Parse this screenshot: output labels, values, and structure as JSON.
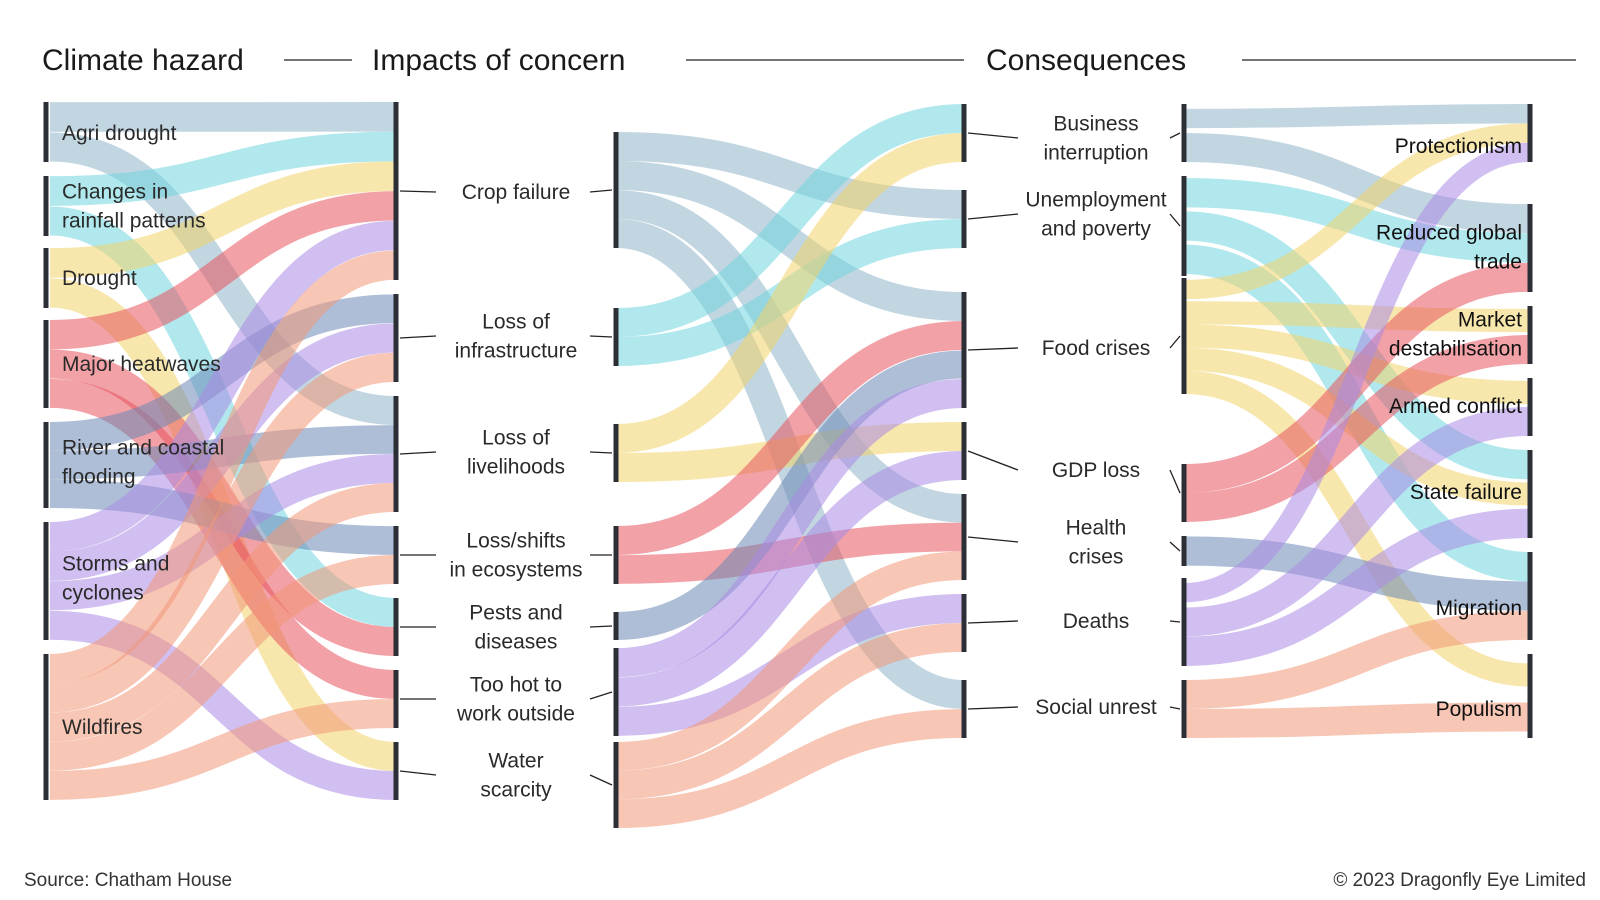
{
  "headers": {
    "hazard": "Climate hazard",
    "impacts": "Impacts of concern",
    "consequences": "Consequences"
  },
  "footer": {
    "source": "Source: Chatham House",
    "copyright": "© 2023 Dragonfly Eye Limited"
  },
  "colors": {
    "blue_grey": "#8fb4c8",
    "cyan": "#6fd6df",
    "yellow": "#f2d46a",
    "red": "#e7535f",
    "slate": "#6c88b6",
    "lavender": "#a98ae4",
    "salmon": "#f39879",
    "bar": "#2d2f36"
  },
  "hazards": [
    {
      "id": "agri",
      "lines": [
        "Agri drought"
      ],
      "color": "blue_grey"
    },
    {
      "id": "rain",
      "lines": [
        "Changes in",
        "rainfall patterns"
      ],
      "color": "cyan"
    },
    {
      "id": "drought",
      "lines": [
        "Drought"
      ],
      "color": "yellow"
    },
    {
      "id": "heat",
      "lines": [
        "Major heatwaves"
      ],
      "color": "red"
    },
    {
      "id": "flood",
      "lines": [
        "River and coastal",
        "flooding"
      ],
      "color": "slate"
    },
    {
      "id": "storm",
      "lines": [
        "Storms and",
        "cyclones"
      ],
      "color": "lavender"
    },
    {
      "id": "fire",
      "lines": [
        "Wildfires"
      ],
      "color": "salmon"
    }
  ],
  "impacts": [
    {
      "id": "crop",
      "lines": [
        "Crop failure"
      ]
    },
    {
      "id": "infra",
      "lines": [
        "Loss of",
        "infrastructure"
      ]
    },
    {
      "id": "livelihood",
      "lines": [
        "Loss of",
        "livelihoods"
      ]
    },
    {
      "id": "eco",
      "lines": [
        "Loss/shifts",
        "in ecosystems"
      ]
    },
    {
      "id": "pests",
      "lines": [
        "Pests and",
        "diseases"
      ]
    },
    {
      "id": "hot",
      "lines": [
        "Too hot to",
        "work outside"
      ]
    },
    {
      "id": "water",
      "lines": [
        "Water",
        "scarcity"
      ]
    }
  ],
  "consequences": [
    {
      "id": "business",
      "lines": [
        "Business",
        "interruption"
      ]
    },
    {
      "id": "unemp",
      "lines": [
        "Unemployment",
        "and poverty"
      ]
    },
    {
      "id": "food",
      "lines": [
        "Food crises"
      ]
    },
    {
      "id": "gdp",
      "lines": [
        "GDP loss"
      ]
    },
    {
      "id": "health",
      "lines": [
        "Health",
        "crises"
      ]
    },
    {
      "id": "deaths",
      "lines": [
        "Deaths"
      ]
    },
    {
      "id": "unrest",
      "lines": [
        "Social unrest"
      ]
    }
  ],
  "outcomes": [
    {
      "id": "protect",
      "lines": [
        "Protectionism"
      ]
    },
    {
      "id": "trade",
      "lines": [
        "Reduced global",
        "trade"
      ]
    },
    {
      "id": "market",
      "lines": [
        "Market",
        "destabilisation"
      ]
    },
    {
      "id": "armed",
      "lines": [
        "Armed conflict"
      ]
    },
    {
      "id": "state",
      "lines": [
        "State failure"
      ]
    },
    {
      "id": "migration",
      "lines": [
        "Migration"
      ]
    },
    {
      "id": "populism",
      "lines": [
        "Populism"
      ]
    }
  ],
  "links_hazard_impact": [
    {
      "from": "agri",
      "to": "crop"
    },
    {
      "from": "agri",
      "to": "livelihood"
    },
    {
      "from": "rain",
      "to": "crop"
    },
    {
      "from": "rain",
      "to": "pests"
    },
    {
      "from": "drought",
      "to": "crop"
    },
    {
      "from": "drought",
      "to": "water"
    },
    {
      "from": "heat",
      "to": "crop"
    },
    {
      "from": "heat",
      "to": "pests"
    },
    {
      "from": "heat",
      "to": "hot"
    },
    {
      "from": "flood",
      "to": "infra"
    },
    {
      "from": "flood",
      "to": "livelihood"
    },
    {
      "from": "flood",
      "to": "eco"
    },
    {
      "from": "storm",
      "to": "crop"
    },
    {
      "from": "storm",
      "to": "infra"
    },
    {
      "from": "storm",
      "to": "livelihood"
    },
    {
      "from": "storm",
      "to": "water"
    },
    {
      "from": "fire",
      "to": "crop"
    },
    {
      "from": "fire",
      "to": "infra"
    },
    {
      "from": "fire",
      "to": "livelihood"
    },
    {
      "from": "fire",
      "to": "eco"
    },
    {
      "from": "fire",
      "to": "hot"
    }
  ],
  "links_impact_consequence": [
    {
      "from": "crop",
      "to": "unemp",
      "color": "blue_grey"
    },
    {
      "from": "crop",
      "to": "food",
      "color": "blue_grey"
    },
    {
      "from": "crop",
      "to": "health",
      "color": "blue_grey"
    },
    {
      "from": "crop",
      "to": "unrest",
      "color": "blue_grey"
    },
    {
      "from": "infra",
      "to": "business",
      "color": "cyan"
    },
    {
      "from": "infra",
      "to": "unemp",
      "color": "cyan"
    },
    {
      "from": "livelihood",
      "to": "business",
      "color": "yellow"
    },
    {
      "from": "livelihood",
      "to": "gdp",
      "color": "yellow"
    },
    {
      "from": "eco",
      "to": "food",
      "color": "red"
    },
    {
      "from": "eco",
      "to": "health",
      "color": "red"
    },
    {
      "from": "pests",
      "to": "food",
      "color": "slate"
    },
    {
      "from": "hot",
      "to": "food",
      "color": "lavender"
    },
    {
      "from": "hot",
      "to": "gdp",
      "color": "lavender"
    },
    {
      "from": "hot",
      "to": "deaths",
      "color": "lavender"
    },
    {
      "from": "water",
      "to": "health",
      "color": "salmon"
    },
    {
      "from": "water",
      "to": "deaths",
      "color": "salmon"
    },
    {
      "from": "water",
      "to": "unrest",
      "color": "salmon"
    }
  ],
  "links_consequence_outcome": [
    {
      "from": "business",
      "to": "protect",
      "color": "blue_grey"
    },
    {
      "from": "business",
      "to": "trade",
      "color": "blue_grey"
    },
    {
      "from": "unemp",
      "to": "trade",
      "color": "cyan"
    },
    {
      "from": "unemp",
      "to": "state",
      "color": "cyan"
    },
    {
      "from": "unemp",
      "to": "migration",
      "color": "cyan"
    },
    {
      "from": "food",
      "to": "protect",
      "color": "yellow"
    },
    {
      "from": "food",
      "to": "market",
      "color": "yellow"
    },
    {
      "from": "food",
      "to": "armed",
      "color": "yellow"
    },
    {
      "from": "food",
      "to": "state",
      "color": "yellow"
    },
    {
      "from": "food",
      "to": "populism",
      "color": "yellow"
    },
    {
      "from": "gdp",
      "to": "trade",
      "color": "red"
    },
    {
      "from": "gdp",
      "to": "market",
      "color": "red"
    },
    {
      "from": "health",
      "to": "migration",
      "color": "slate"
    },
    {
      "from": "deaths",
      "to": "protect",
      "color": "lavender"
    },
    {
      "from": "deaths",
      "to": "armed",
      "color": "lavender"
    },
    {
      "from": "deaths",
      "to": "state",
      "color": "lavender"
    },
    {
      "from": "unrest",
      "to": "migration",
      "color": "salmon"
    },
    {
      "from": "unrest",
      "to": "populism",
      "color": "salmon"
    }
  ]
}
